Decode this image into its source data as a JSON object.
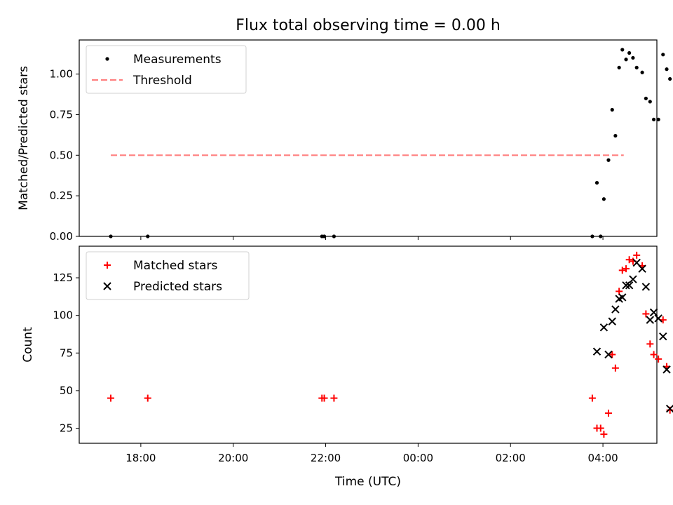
{
  "title": "Flux total observing time = 0.00 h",
  "x_axis": {
    "label": "Time (UTC)",
    "range_hours": [
      16.667,
      29.167
    ],
    "ticks": [
      {
        "value": 18,
        "label": "18:00"
      },
      {
        "value": 20,
        "label": "20:00"
      },
      {
        "value": 22,
        "label": "22:00"
      },
      {
        "value": 24,
        "label": "00:00"
      },
      {
        "value": 26,
        "label": "02:00"
      },
      {
        "value": 28,
        "label": "04:00"
      }
    ]
  },
  "chart_data": [
    {
      "type": "scatter",
      "id": "ratio",
      "ylabel": "Matched/Predicted stars",
      "ylim": [
        0,
        1.21
      ],
      "yticks": [
        {
          "value": 0,
          "label": "0.00"
        },
        {
          "value": 0.25,
          "label": "0.25"
        },
        {
          "value": 0.5,
          "label": "0.50"
        },
        {
          "value": 0.75,
          "label": "0.75"
        },
        {
          "value": 1.0,
          "label": "1.00"
        }
      ],
      "legend_position": "upper-left",
      "series": [
        {
          "name": "Measurements",
          "marker": "dot",
          "color": "#000000",
          "points": [
            [
              17.35,
              0.0
            ],
            [
              18.15,
              0.0
            ],
            [
              21.92,
              0.0
            ],
            [
              21.97,
              0.0
            ],
            [
              22.18,
              0.0
            ],
            [
              27.77,
              0.0
            ],
            [
              27.95,
              0.0
            ],
            [
              27.87,
              0.33
            ],
            [
              28.02,
              0.23
            ],
            [
              28.12,
              0.47
            ],
            [
              28.2,
              0.78
            ],
            [
              28.27,
              0.62
            ],
            [
              28.35,
              1.04
            ],
            [
              28.42,
              1.15
            ],
            [
              28.5,
              1.09
            ],
            [
              28.57,
              1.13
            ],
            [
              28.65,
              1.1
            ],
            [
              28.73,
              1.04
            ],
            [
              28.85,
              1.01
            ],
            [
              28.93,
              0.85
            ],
            [
              29.02,
              0.83
            ],
            [
              29.1,
              0.72
            ],
            [
              29.2,
              0.72
            ],
            [
              29.3,
              1.12
            ],
            [
              29.38,
              1.03
            ],
            [
              29.45,
              0.97
            ]
          ]
        },
        {
          "name": "Threshold",
          "marker": "dashed-line",
          "color": "#ff8080",
          "points": [
            [
              17.35,
              0.5
            ],
            [
              28.45,
              0.5
            ]
          ]
        }
      ]
    },
    {
      "type": "scatter",
      "id": "counts",
      "ylabel": "Count",
      "ylim": [
        15,
        146
      ],
      "yticks": [
        {
          "value": 25,
          "label": "25"
        },
        {
          "value": 50,
          "label": "50"
        },
        {
          "value": 75,
          "label": "75"
        },
        {
          "value": 100,
          "label": "100"
        },
        {
          "value": 125,
          "label": "125"
        }
      ],
      "legend_position": "upper-left",
      "series": [
        {
          "name": "Matched stars",
          "marker": "plus",
          "color": "#ff0000",
          "points": [
            [
              17.35,
              45
            ],
            [
              18.15,
              45
            ],
            [
              21.92,
              45
            ],
            [
              21.97,
              45
            ],
            [
              22.18,
              45
            ],
            [
              27.77,
              45
            ],
            [
              27.87,
              25
            ],
            [
              27.95,
              25
            ],
            [
              28.02,
              21
            ],
            [
              28.12,
              35
            ],
            [
              28.2,
              74
            ],
            [
              28.27,
              65
            ],
            [
              28.35,
              116
            ],
            [
              28.42,
              130
            ],
            [
              28.5,
              131
            ],
            [
              28.57,
              137
            ],
            [
              28.65,
              136
            ],
            [
              28.73,
              140
            ],
            [
              28.85,
              133
            ],
            [
              28.93,
              101
            ],
            [
              29.02,
              81
            ],
            [
              29.1,
              74
            ],
            [
              29.2,
              71
            ],
            [
              29.3,
              97
            ],
            [
              29.38,
              66
            ],
            [
              29.45,
              37
            ]
          ]
        },
        {
          "name": "Predicted stars",
          "marker": "cross",
          "color": "#000000",
          "points": [
            [
              27.87,
              76
            ],
            [
              28.02,
              92
            ],
            [
              28.12,
              74
            ],
            [
              28.2,
              96
            ],
            [
              28.27,
              104
            ],
            [
              28.35,
              111
            ],
            [
              28.42,
              112
            ],
            [
              28.5,
              120
            ],
            [
              28.57,
              120
            ],
            [
              28.65,
              124
            ],
            [
              28.73,
              135
            ],
            [
              28.85,
              131
            ],
            [
              28.93,
              119
            ],
            [
              29.02,
              97
            ],
            [
              29.1,
              102
            ],
            [
              29.2,
              98
            ],
            [
              29.3,
              86
            ],
            [
              29.38,
              64
            ],
            [
              29.45,
              38
            ]
          ]
        }
      ]
    }
  ]
}
